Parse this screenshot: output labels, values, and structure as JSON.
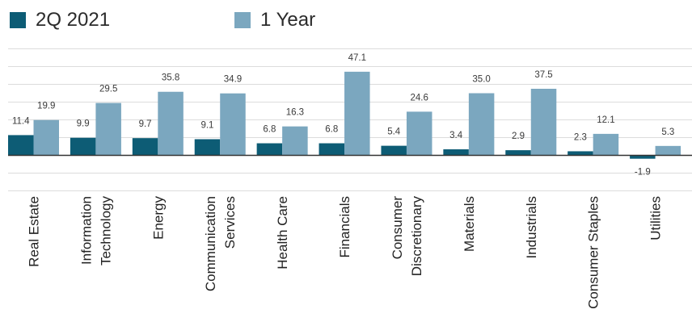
{
  "chart_data": {
    "type": "bar",
    "categories": [
      [
        "Real Estate"
      ],
      [
        "Information",
        "Technology"
      ],
      [
        "Energy"
      ],
      [
        "Communication",
        "Services"
      ],
      [
        "Health Care"
      ],
      [
        "Financials"
      ],
      [
        "Consumer",
        "Discretionary"
      ],
      [
        "Materials"
      ],
      [
        "Industrials"
      ],
      [
        "Consumer Staples"
      ],
      [
        "Utilities"
      ]
    ],
    "series": [
      {
        "name": "2Q 2021",
        "color": "#0d5c75",
        "values": [
          11.4,
          9.9,
          9.7,
          9.1,
          6.8,
          6.8,
          5.4,
          3.4,
          2.9,
          2.3,
          -1.9
        ],
        "labels": [
          "11.4",
          "9.9",
          "9.7",
          "9.1",
          "6.8",
          "6.8",
          "5.4",
          "3.4",
          "2.9",
          "2.3",
          "-1.9"
        ]
      },
      {
        "name": "1 Year",
        "color": "#7ba7bf",
        "values": [
          19.9,
          29.5,
          35.8,
          34.9,
          16.3,
          47.1,
          24.6,
          35.0,
          37.5,
          12.1,
          5.3
        ],
        "labels": [
          "19.9",
          "29.5",
          "35.8",
          "34.9",
          "16.3",
          "47.1",
          "24.6",
          "35.0",
          "37.5",
          "12.1",
          "5.3"
        ]
      }
    ],
    "ylim": [
      -20,
      60
    ],
    "grid": true,
    "legend": "top-left"
  }
}
